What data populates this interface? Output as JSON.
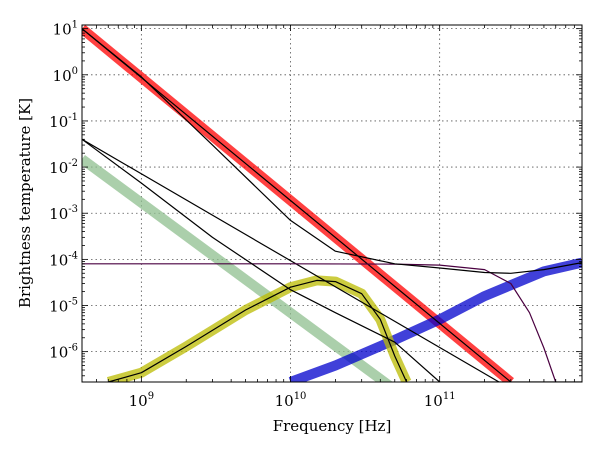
{
  "chart_data": {
    "type": "line",
    "title": "",
    "xlabel": "Frequency [Hz]",
    "ylabel": "Brightness temperature [K]",
    "xscale": "log",
    "yscale": "log",
    "xlim": [
      400000000.0,
      900000000000.0
    ],
    "ylim": [
      2.2e-07,
      12.0
    ],
    "grid": true,
    "legend": "none",
    "x_ticks": [
      {
        "value": 1000000000.0,
        "base": "10",
        "exp": "9"
      },
      {
        "value": 10000000000.0,
        "base": "10",
        "exp": "10"
      },
      {
        "value": 100000000000.0,
        "base": "10",
        "exp": "11"
      }
    ],
    "y_ticks": [
      {
        "value": 10.0,
        "base": "10",
        "exp": "1"
      },
      {
        "value": 1.0,
        "base": "10",
        "exp": "0"
      },
      {
        "value": 0.1,
        "base": "10",
        "exp": "-1"
      },
      {
        "value": 0.01,
        "base": "10",
        "exp": "-2"
      },
      {
        "value": 0.001,
        "base": "10",
        "exp": "-3"
      },
      {
        "value": 0.0001,
        "base": "10",
        "exp": "-4"
      },
      {
        "value": 1e-05,
        "base": "10",
        "exp": "-5"
      },
      {
        "value": 1e-06,
        "base": "10",
        "exp": "-6"
      }
    ],
    "series": [
      {
        "style": "band",
        "color": "#8fbf8f",
        "x": [
          400000000.0,
          50000000000.0
        ],
        "y": [
          0.015,
          1.5e-07
        ]
      },
      {
        "style": "band",
        "color": "#ff0000",
        "x": [
          400000000.0,
          300000000000.0
        ],
        "y": [
          10.0,
          2.2e-07
        ]
      },
      {
        "style": "band",
        "color": "#0000cc",
        "x": [
          10000000000.0,
          20000000000.0,
          50000000000.0,
          100000000000.0,
          200000000000.0,
          500000000000.0,
          900000000000.0
        ],
        "y": [
          2.2e-07,
          5e-07,
          1.8e-06,
          5e-06,
          1.6e-05,
          5.5e-05,
          8.5e-05
        ]
      },
      {
        "style": "band",
        "color": "#bbbb00",
        "x": [
          600000000.0,
          1000000000.0,
          2000000000.0,
          5000000000.0,
          10000000000.0,
          15000000000.0,
          20000000000.0,
          30000000000.0,
          40000000000.0,
          50000000000.0,
          60000000000.0
        ],
        "y": [
          2.2e-07,
          3.5e-07,
          1.3e-06,
          8e-06,
          2.5e-05,
          3.5e-05,
          3.3e-05,
          1.8e-05,
          5e-06,
          8e-07,
          2.2e-07
        ]
      },
      {
        "style": "line",
        "color": "#000000",
        "x": [
          400000000.0,
          300000000000.0
        ],
        "y": [
          10.0,
          2.2e-07
        ]
      },
      {
        "style": "line",
        "color": "#000000",
        "x": [
          400000000.0,
          250000000000.0
        ],
        "y": [
          0.04,
          2.2e-07
        ]
      },
      {
        "style": "line",
        "color": "#000000",
        "x": [
          600000000.0,
          1000000000.0,
          2000000000.0,
          5000000000.0,
          10000000000.0,
          15000000000.0,
          20000000000.0,
          30000000000.0,
          40000000000.0,
          50000000000.0,
          60000000000.0
        ],
        "y": [
          2.2e-07,
          3.5e-07,
          1.3e-06,
          8e-06,
          2.5e-05,
          3.5e-05,
          3.3e-05,
          1.8e-05,
          5e-06,
          8e-07,
          2.2e-07
        ]
      },
      {
        "style": "line",
        "color": "#4a0040",
        "x": [
          400000000.0,
          10000000000.0,
          50000000000.0,
          100000000000.0,
          200000000000.0,
          300000000000.0,
          400000000000.0,
          500000000000.0,
          600000000000.0
        ],
        "y": [
          8e-05,
          8e-05,
          7.9e-05,
          7.5e-05,
          6e-05,
          3e-05,
          7e-06,
          1.2e-06,
          2.2e-07
        ]
      },
      {
        "style": "line",
        "color": "#000000",
        "x": [
          400000000.0,
          1000000000.0,
          3000000000.0,
          10000000000.0,
          20000000000.0,
          50000000000.0,
          100000000000.0,
          200000000000.0,
          300000000000.0,
          500000000000.0,
          900000000000.0
        ],
        "y": [
          0.04,
          0.0045,
          0.0003,
          2.2e-05,
          7e-06,
          1.6e-06,
          2.2e-07,
          2.2e-07,
          2.2e-07,
          2.2e-07,
          2.2e-07
        ]
      },
      {
        "style": "line",
        "color": "#000000",
        "x": [
          400000000.0,
          1000000000.0,
          3000000000.0,
          10000000000.0,
          20000000000.0,
          50000000000.0,
          100000000000.0,
          200000000000.0,
          300000000000.0,
          500000000000.0,
          900000000000.0
        ],
        "y": [
          10.0,
          0.9,
          0.03,
          0.0007,
          0.00015,
          8e-05,
          6.5e-05,
          5.2e-05,
          5e-05,
          6e-05,
          8.5e-05
        ]
      }
    ]
  }
}
